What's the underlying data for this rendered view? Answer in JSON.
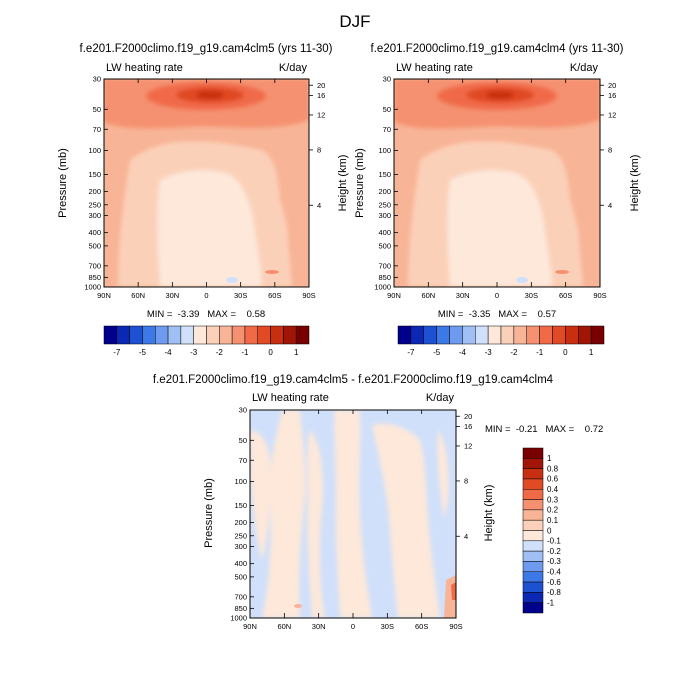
{
  "page_title": "DJF",
  "chart_data": [
    {
      "type": "heatmap",
      "title": "f.e201.F2000climo.f19_g19.cam4clm5 (yrs 11-30)",
      "left_label": "LW heating rate",
      "right_label": "K/day",
      "ylabel": "Pressure (mb)",
      "y2label": "Height (km)",
      "x_ticks": [
        "90N",
        "60N",
        "30N",
        "0",
        "30S",
        "60S",
        "90S"
      ],
      "y_ticks": [
        "30",
        "50",
        "70",
        "100",
        "150",
        "200",
        "250",
        "300",
        "400",
        "500",
        "700",
        "850",
        "1000"
      ],
      "y2_ticks": [
        "20",
        "16",
        "12",
        "8",
        "4"
      ],
      "stats": "MIN =  -3.39   MAX =    0.58",
      "min": -3.39,
      "max": 0.58
    },
    {
      "type": "heatmap",
      "title": "f.e201.F2000climo.f19_g19.cam4clm4 (yrs 11-30)",
      "left_label": "LW heating rate",
      "right_label": "K/day",
      "ylabel": "Pressure (mb)",
      "y2label": "Height (km)",
      "x_ticks": [
        "90N",
        "60N",
        "30N",
        "0",
        "30S",
        "60S",
        "90S"
      ],
      "y_ticks": [
        "30",
        "50",
        "70",
        "100",
        "150",
        "200",
        "250",
        "300",
        "400",
        "500",
        "700",
        "850",
        "1000"
      ],
      "y2_ticks": [
        "20",
        "16",
        "12",
        "8",
        "4"
      ],
      "stats": "MIN =  -3.35   MAX =    0.57",
      "min": -3.35,
      "max": 0.57
    },
    {
      "type": "heatmap",
      "title": "f.e201.F2000climo.f19_g19.cam4clm5 - f.e201.F2000climo.f19_g19.cam4clm4",
      "left_label": "LW heating rate",
      "right_label": "K/day",
      "ylabel": "Pressure (mb)",
      "y2label": "Height (km)",
      "x_ticks": [
        "90N",
        "60N",
        "30N",
        "0",
        "30S",
        "60S",
        "90S"
      ],
      "y_ticks": [
        "30",
        "50",
        "70",
        "100",
        "150",
        "200",
        "250",
        "300",
        "400",
        "500",
        "700",
        "850",
        "1000"
      ],
      "y2_ticks": [
        "20",
        "16",
        "12",
        "8",
        "4"
      ],
      "stats": "MIN =  -0.21   MAX =    0.72",
      "min": -0.21,
      "max": 0.72
    }
  ],
  "colorbar_top": {
    "labels": [
      "-7",
      "-5",
      "-4",
      "-3",
      "-2",
      "-1",
      "0",
      "1"
    ],
    "colors": [
      "#00008c",
      "#0a28b4",
      "#1e50d2",
      "#3c78e6",
      "#6e9bf0",
      "#a0c0f5",
      "#d0e0fa",
      "#fde8da",
      "#fbd0b8",
      "#f8b496",
      "#f59170",
      "#f06a48",
      "#e04a24",
      "#c82e10",
      "#a01505",
      "#780000"
    ]
  },
  "colorbar_diff": {
    "labels": [
      "1",
      "0.8",
      "0.6",
      "0.4",
      "0.3",
      "0.2",
      "0.1",
      "0",
      "-0.1",
      "-0.2",
      "-0.3",
      "-0.4",
      "-0.6",
      "-0.8",
      "-1"
    ],
    "colors": [
      "#780000",
      "#a01505",
      "#c82e10",
      "#e04a24",
      "#f06a48",
      "#f59170",
      "#f8b496",
      "#fbd0b8",
      "#fde8da",
      "#d0e0fa",
      "#a0c0f5",
      "#6e9bf0",
      "#3c78e6",
      "#1e50d2",
      "#0a28b4",
      "#00008c"
    ]
  }
}
